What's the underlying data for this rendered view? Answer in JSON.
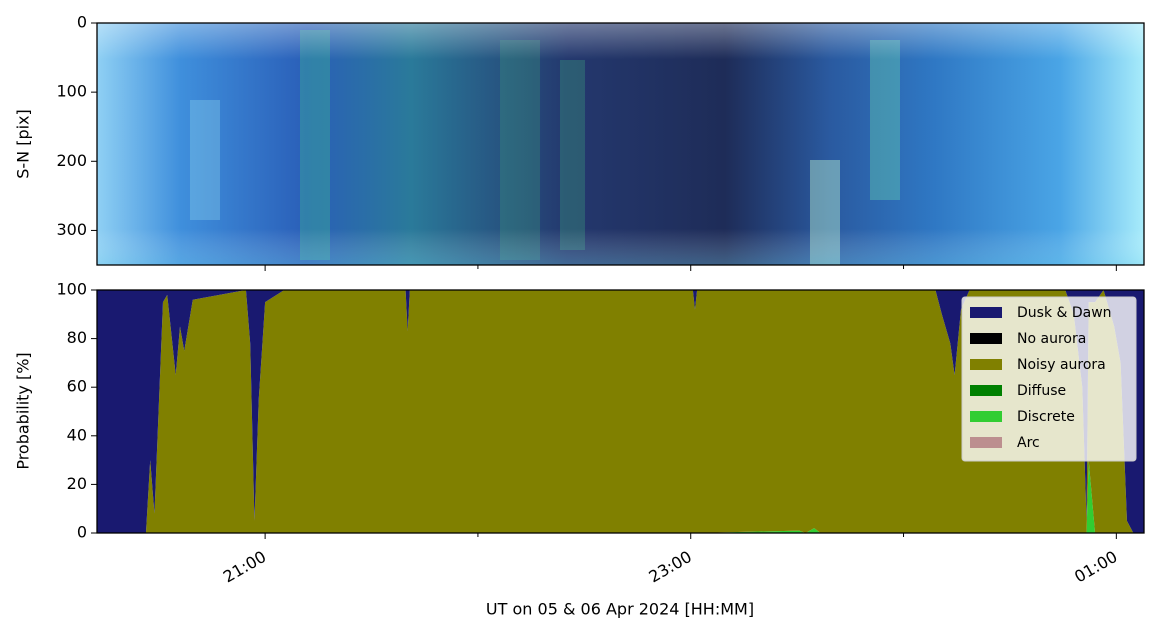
{
  "chart_data": [
    {
      "type": "image",
      "ylabel": "S-N [pix]",
      "ylim": [
        0,
        350
      ],
      "y_inverted": true,
      "yticks": [
        0,
        100,
        200,
        300
      ]
    },
    {
      "type": "stackplot",
      "ylabel": "Probability [%]",
      "xlabel": "UT on 05 & 06 Apr 2024 [HH:MM]",
      "xlim": [
        20.21,
        25.13
      ],
      "xticks": [
        {
          "value": 21,
          "label": "21:00"
        },
        {
          "value": 23,
          "label": "23:00"
        },
        {
          "value": 25,
          "label": "01:00"
        }
      ],
      "xminorticks": [
        22,
        24
      ],
      "ylim": [
        0,
        100
      ],
      "yticks": [
        0,
        20,
        40,
        60,
        80,
        100
      ],
      "legend": "upper right",
      "x": [
        20.21,
        20.44,
        20.46,
        20.48,
        20.52,
        20.54,
        20.58,
        20.6,
        20.62,
        20.66,
        20.91,
        20.93,
        20.95,
        20.97,
        21.0,
        21.09,
        21.66,
        21.67,
        21.68,
        23.01,
        23.02,
        23.03,
        23.51,
        23.54,
        23.58,
        23.61,
        24.15,
        24.18,
        24.22,
        24.24,
        24.27,
        24.31,
        24.76,
        24.8,
        24.84,
        24.86,
        24.87,
        24.9,
        24.94,
        24.99,
        25.02,
        25.05,
        25.08,
        25.13
      ],
      "series": [
        {
          "name": "Arc",
          "color": "#bc8f8f",
          "values": [
            0,
            0,
            0,
            0,
            0,
            0,
            0,
            0,
            0,
            0,
            0,
            0,
            0,
            0,
            0,
            0,
            0,
            0,
            0,
            0,
            0,
            0,
            0,
            0,
            0,
            0,
            0,
            0,
            0,
            0,
            0,
            0,
            0,
            0,
            0,
            0,
            0,
            0,
            0,
            0,
            0,
            0,
            0,
            0
          ]
        },
        {
          "name": "Discrete",
          "color": "#32cd32",
          "values": [
            0,
            0,
            0,
            0,
            0,
            0,
            0,
            0,
            0,
            0,
            0,
            0,
            0,
            0,
            0,
            0,
            0,
            0,
            0,
            0,
            0,
            0,
            1,
            0,
            2,
            0,
            0,
            0,
            0,
            0,
            0,
            0,
            0,
            0,
            0,
            0,
            30,
            0,
            0,
            0,
            0,
            0,
            0,
            0
          ]
        },
        {
          "name": "Diffuse",
          "color": "#008000",
          "values": [
            0,
            0,
            0,
            0,
            0,
            0,
            0,
            0,
            0,
            0,
            0,
            0,
            0,
            0,
            0,
            0,
            0,
            0,
            0,
            0,
            0,
            0,
            0,
            0,
            0,
            0,
            0,
            0,
            0,
            0,
            0,
            0,
            0,
            0,
            0,
            0,
            0,
            0,
            0,
            0,
            0,
            0,
            0,
            0
          ]
        },
        {
          "name": "Noisy aurora",
          "color": "#808000",
          "values": [
            0,
            0,
            30,
            8,
            95,
            98,
            65,
            85,
            75,
            96,
            100,
            78,
            5,
            55,
            95,
            100,
            100,
            83,
            100,
            100,
            92,
            100,
            99,
            100,
            98,
            100,
            100,
            90,
            78,
            65,
            92,
            100,
            100,
            90,
            60,
            5,
            65,
            95,
            100,
            85,
            70,
            5,
            0,
            0
          ]
        },
        {
          "name": "No aurora",
          "color": "#000000",
          "values": [
            0,
            0,
            0,
            0,
            0,
            0,
            0,
            0,
            0,
            0,
            0,
            0,
            0,
            0,
            0,
            0,
            0,
            0,
            0,
            0,
            0,
            0,
            0,
            0,
            0,
            0,
            0,
            0,
            0,
            0,
            0,
            0,
            0,
            0,
            0,
            0,
            0,
            0,
            0,
            0,
            0,
            0,
            0,
            0
          ]
        },
        {
          "name": "Dusk & Dawn",
          "color": "#191970",
          "values": [
            100,
            100,
            70,
            92,
            5,
            2,
            35,
            15,
            25,
            4,
            0,
            22,
            95,
            45,
            5,
            0,
            0,
            17,
            0,
            0,
            8,
            0,
            0,
            0,
            0,
            0,
            0,
            10,
            22,
            35,
            8,
            0,
            0,
            10,
            40,
            95,
            5,
            5,
            0,
            15,
            30,
            95,
            100,
            100
          ]
        }
      ]
    }
  ]
}
